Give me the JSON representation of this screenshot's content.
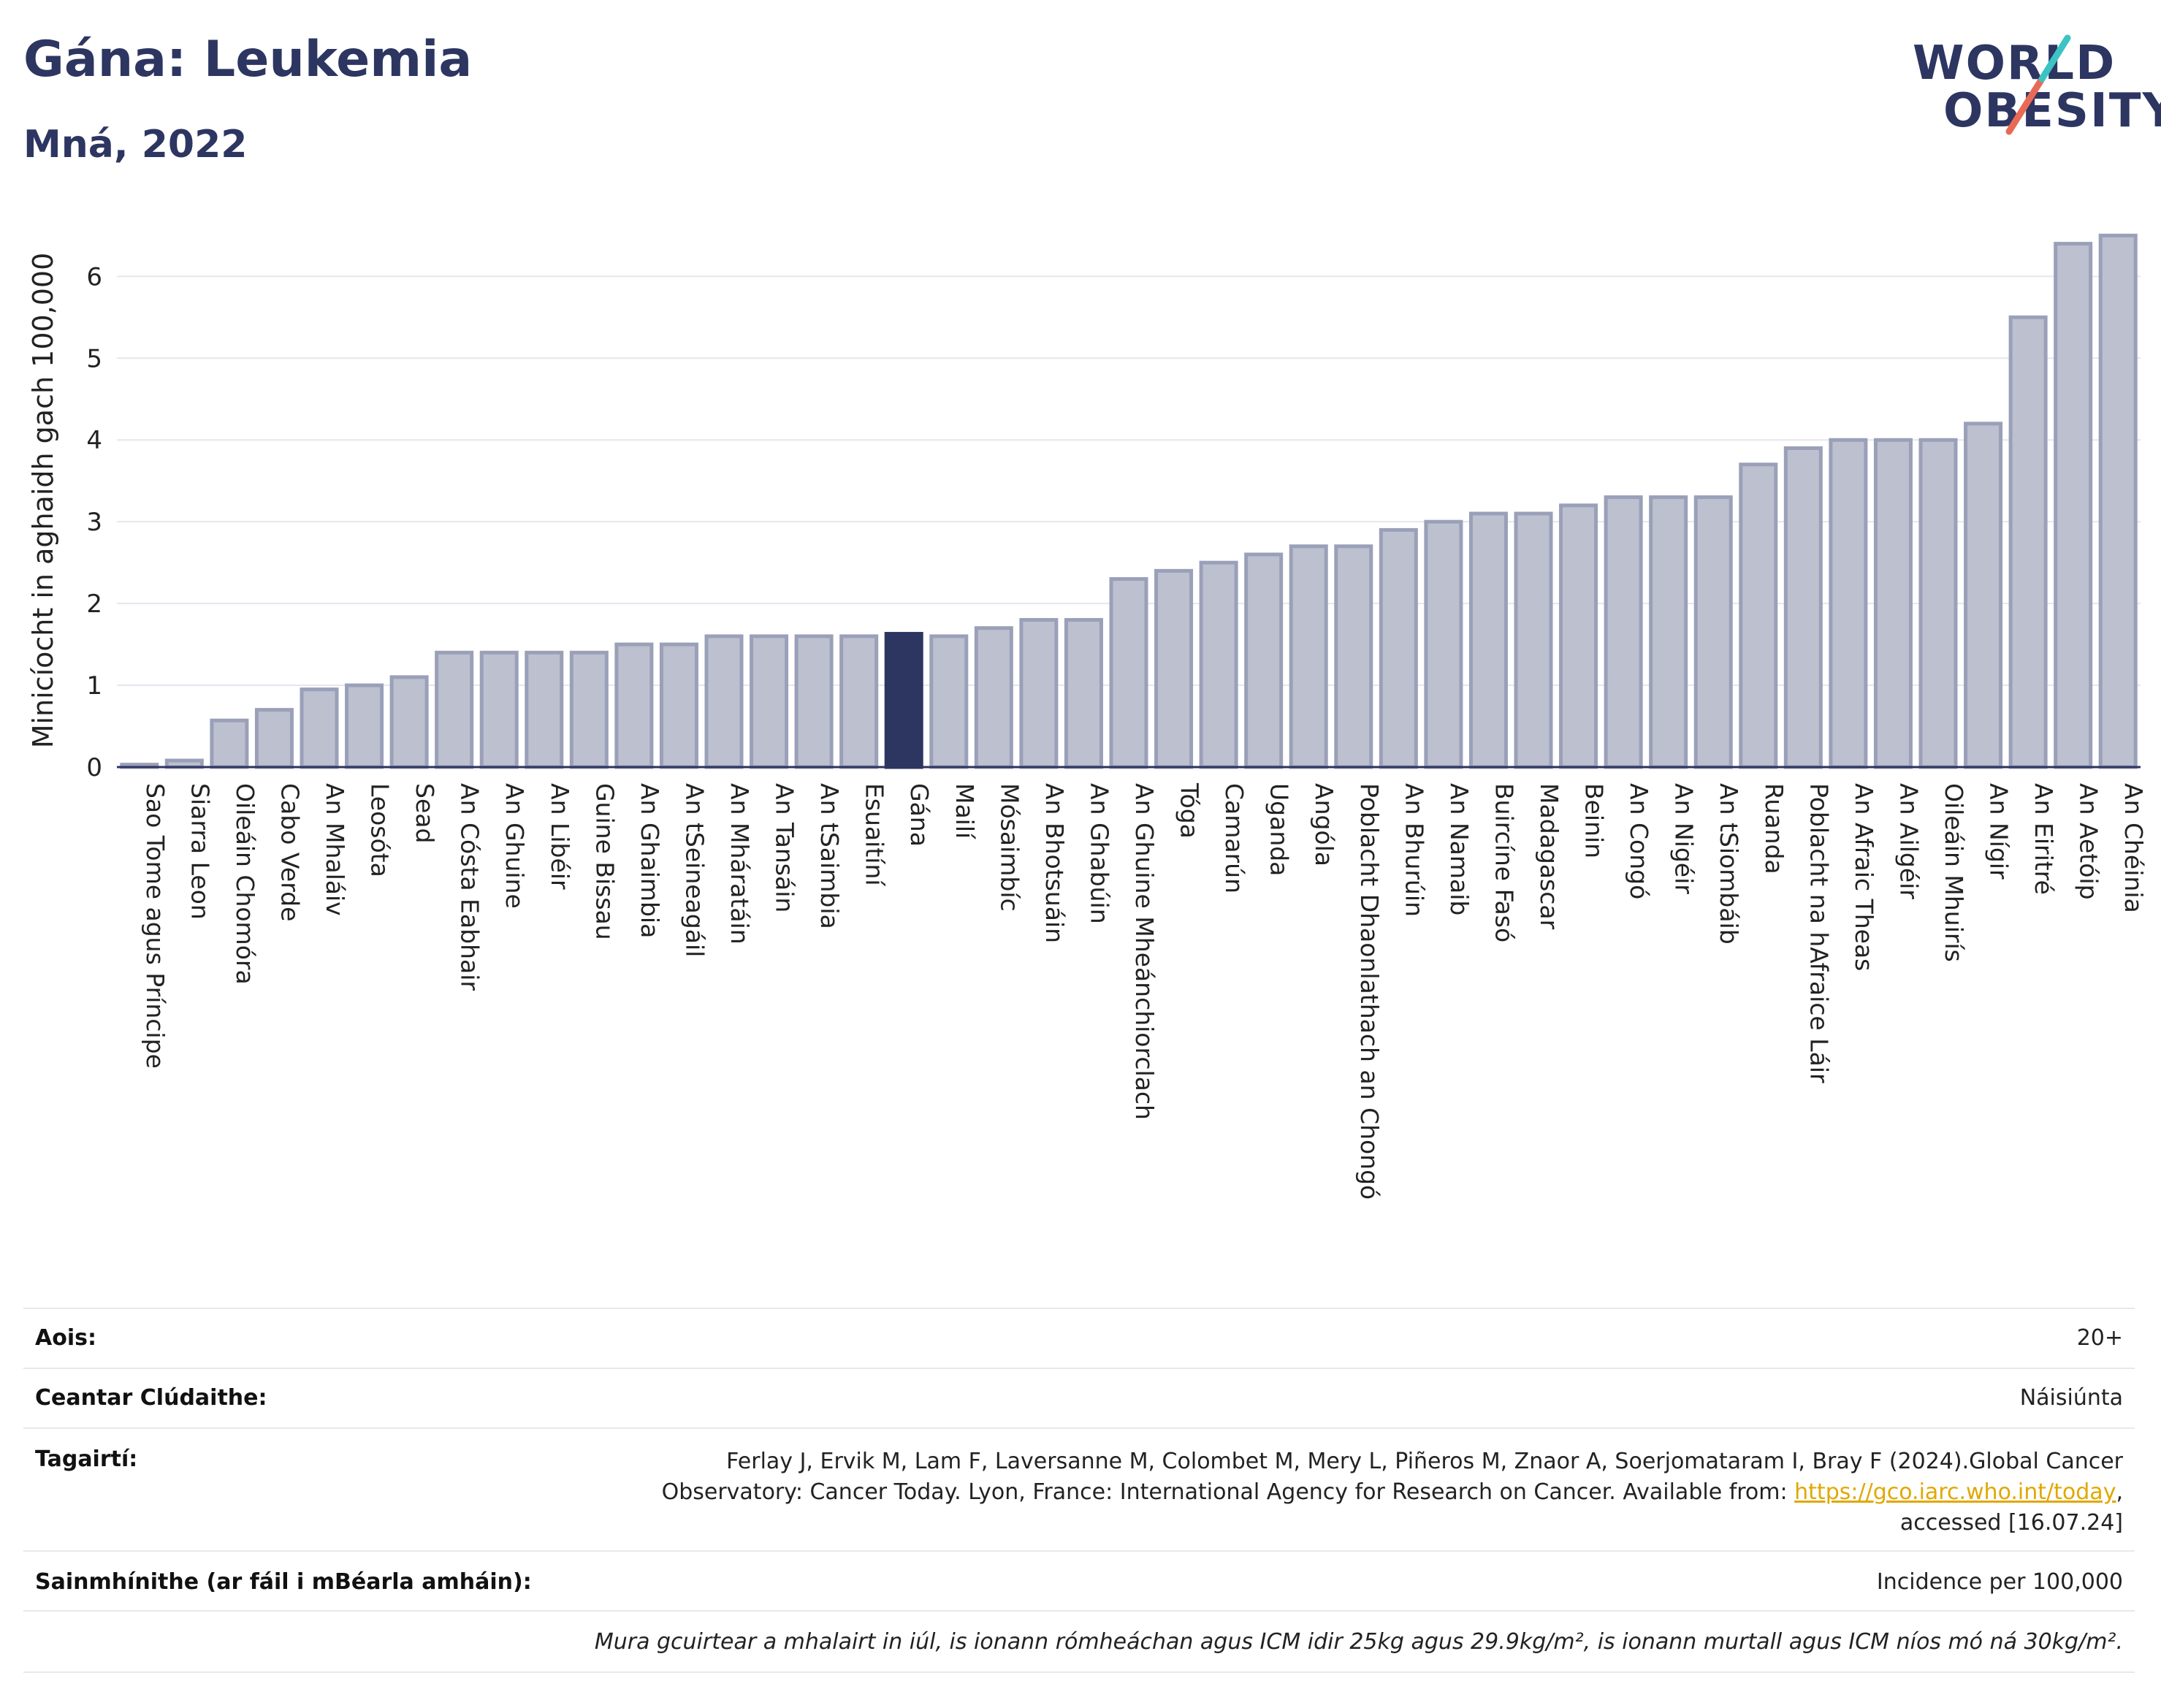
{
  "header": {
    "title": "Gána: Leukemia",
    "subtitle": "Mná, 2022"
  },
  "logo": {
    "line1": "WORLD",
    "line2": "OBESITY",
    "colors": {
      "text": "#2d3561",
      "slash_top": "#3cc3c3",
      "slash_bottom": "#e86a56"
    }
  },
  "colors": {
    "bar": "#bcc0cf",
    "bar_border": "#9aa0b8",
    "highlight": "#2d3561",
    "axis": "#2d3561",
    "grid": "#e6e6ee"
  },
  "chart_data": {
    "type": "bar",
    "title": "",
    "xlabel": "",
    "ylabel": "Minicíocht in aghaidh gach 100,000",
    "ylim": [
      0,
      6.7
    ],
    "yticks": [
      0,
      1,
      2,
      3,
      4,
      5,
      6
    ],
    "grid": true,
    "highlight": "Gána",
    "categories": [
      "Sao Tome agus Príncipe",
      "Siarra Leon",
      "Oileáin Chomóra",
      "Cabo Verde",
      "An Mhaláiv",
      "Leosóta",
      "Sead",
      "An Cósta Eabhair",
      "An Ghuine",
      "An Libéir",
      "Guine Bissau",
      "An Ghaimbia",
      "An tSeineagáil",
      "An Mháratáin",
      "An Tansáin",
      "An tSaimbia",
      "Esuaitíní",
      "Gána",
      "Mailí",
      "Mósaimbíc",
      "An Bhotsuáin",
      "An Ghabúin",
      "An Ghuine Mheánchiorclach",
      "Tóga",
      "Camarún",
      "Uganda",
      "Angóla",
      "Poblacht Dhaonlathach an Chongó",
      "An Bhurúin",
      "An Namaib",
      "Buircíne Fasó",
      "Madagascar",
      "Beinin",
      "An Congó",
      "An Nigéir",
      "An tSiombáib",
      "Ruanda",
      "Poblacht na hAfraice Láir",
      "An Afraic Theas",
      "An Ailgéir",
      "Oileáin Mhuirís",
      "An Nígir",
      "An Eiritré",
      "An Aetóip",
      "An Chéinia"
    ],
    "values": [
      0.03,
      0.08,
      0.57,
      0.7,
      0.95,
      1.0,
      1.1,
      1.4,
      1.4,
      1.4,
      1.4,
      1.5,
      1.5,
      1.6,
      1.6,
      1.6,
      1.6,
      1.63,
      1.6,
      1.7,
      1.8,
      1.8,
      2.3,
      2.4,
      2.5,
      2.6,
      2.7,
      2.7,
      2.9,
      3.0,
      3.1,
      3.1,
      3.2,
      3.3,
      3.3,
      3.3,
      3.7,
      3.9,
      4.0,
      4.0,
      4.0,
      4.2,
      5.5,
      6.4,
      6.5
    ]
  },
  "info": {
    "age_label": "Aois:",
    "age_value": "20+",
    "coverage_label": "Ceantar Clúdaithe:",
    "coverage_value": "Náisiúnta",
    "refs_label": "Tagairtí:",
    "refs_line1": "Ferlay J, Ervik M, Lam F, Laversanne M, Colombet M, Mery L, Piñeros M, Znaor A, Soerjomataram I, Bray F (2024).Global Cancer",
    "refs_line2_pre": "Observatory: Cancer Today. Lyon, France: International Agency for Research on Cancer. Available from: ",
    "refs_link": "https://gco.iarc.who.int/today",
    "refs_line2_post": ",",
    "refs_line3": "accessed [16.07.24]",
    "defs_label": "Sainmhínithe (ar fáil i mBéarla amháin):",
    "defs_value": "Incidence per 100,000",
    "note": "Mura gcuirtear a mhalairt in iúl, is ionann rómheáchan agus ICM idir 25kg agus 29.9kg/m², is ionann murtall agus ICM níos mó ná 30kg/m²."
  }
}
